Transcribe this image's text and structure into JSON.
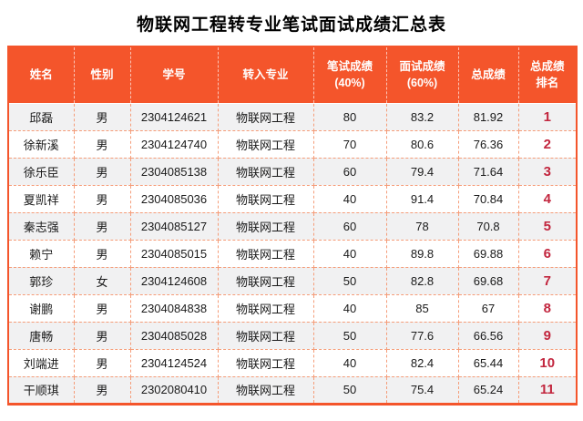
{
  "page": {
    "title": "物联网工程转专业笔试面试成绩汇总表"
  },
  "colors": {
    "header_bg": "#F4552B",
    "header_text": "#FFFFFF",
    "rank_text": "#C2263E",
    "alt_row_bg": "#F1F1F2",
    "inner_border": "#F59C78",
    "outer_border": "#F4552B",
    "body_text": "#1A1A1A"
  },
  "table": {
    "headers": [
      "姓名",
      "性别",
      "学号",
      "转入专业",
      "笔试成绩\n(40%)",
      "面试成绩\n(60%)",
      "总成绩",
      "总成绩\n排名"
    ],
    "rows": [
      {
        "name": "邱磊",
        "gender": "男",
        "student_id": "2304124621",
        "major": "物联网工程",
        "written": "80",
        "interview": "83.2",
        "total": "81.92",
        "rank": "1"
      },
      {
        "name": "徐新溪",
        "gender": "男",
        "student_id": "2304124740",
        "major": "物联网工程",
        "written": "70",
        "interview": "80.6",
        "total": "76.36",
        "rank": "2"
      },
      {
        "name": "徐乐臣",
        "gender": "男",
        "student_id": "2304085138",
        "major": "物联网工程",
        "written": "60",
        "interview": "79.4",
        "total": "71.64",
        "rank": "3"
      },
      {
        "name": "夏凯祥",
        "gender": "男",
        "student_id": "2304085036",
        "major": "物联网工程",
        "written": "40",
        "interview": "91.4",
        "total": "70.84",
        "rank": "4"
      },
      {
        "name": "秦志强",
        "gender": "男",
        "student_id": "2304085127",
        "major": "物联网工程",
        "written": "60",
        "interview": "78",
        "total": "70.8",
        "rank": "5"
      },
      {
        "name": "赖宁",
        "gender": "男",
        "student_id": "2304085015",
        "major": "物联网工程",
        "written": "40",
        "interview": "89.8",
        "total": "69.88",
        "rank": "6"
      },
      {
        "name": "郭珍",
        "gender": "女",
        "student_id": "2304124608",
        "major": "物联网工程",
        "written": "50",
        "interview": "82.8",
        "total": "69.68",
        "rank": "7"
      },
      {
        "name": "谢鹏",
        "gender": "男",
        "student_id": "2304084838",
        "major": "物联网工程",
        "written": "40",
        "interview": "85",
        "total": "67",
        "rank": "8"
      },
      {
        "name": "唐畅",
        "gender": "男",
        "student_id": "2304085028",
        "major": "物联网工程",
        "written": "50",
        "interview": "77.6",
        "total": "66.56",
        "rank": "9"
      },
      {
        "name": "刘端进",
        "gender": "男",
        "student_id": "2304124524",
        "major": "物联网工程",
        "written": "40",
        "interview": "82.4",
        "total": "65.44",
        "rank": "10"
      },
      {
        "name": "干顺琪",
        "gender": "男",
        "student_id": "2302080410",
        "major": "物联网工程",
        "written": "50",
        "interview": "75.4",
        "total": "65.24",
        "rank": "11"
      }
    ]
  }
}
